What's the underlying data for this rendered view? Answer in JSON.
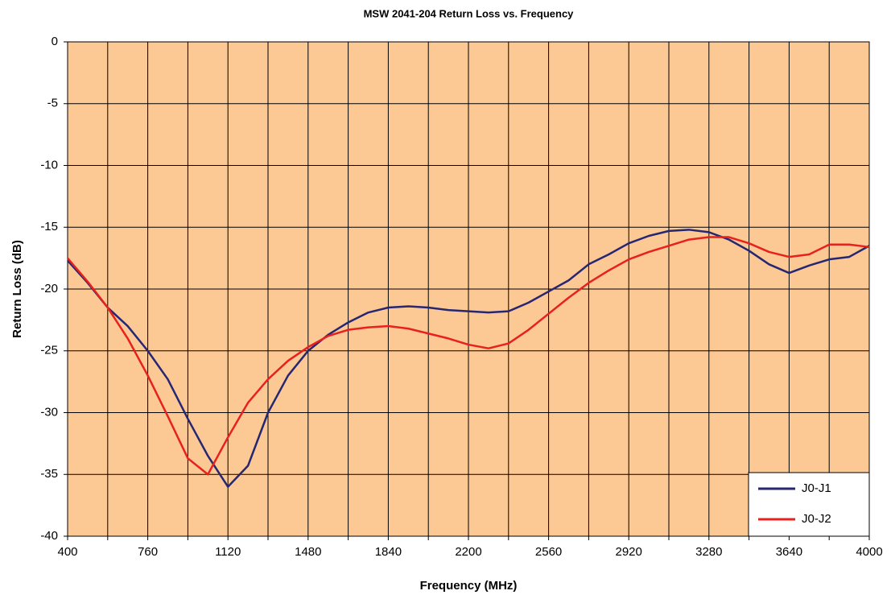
{
  "chart_data": {
    "type": "line",
    "title": "MSW 2041-204 Return Loss vs. Frequency",
    "xlabel": "Frequency (MHz)",
    "ylabel": "Return Loss (dB)",
    "x": [
      400,
      490,
      580,
      670,
      760,
      850,
      940,
      1030,
      1120,
      1210,
      1300,
      1390,
      1480,
      1570,
      1660,
      1750,
      1840,
      1930,
      2020,
      2110,
      2200,
      2290,
      2380,
      2470,
      2560,
      2650,
      2740,
      2830,
      2920,
      3010,
      3100,
      3190,
      3280,
      3370,
      3460,
      3550,
      3640,
      3730,
      3820,
      3910,
      4000
    ],
    "series": [
      {
        "name": "J0-J1",
        "color": "#262673",
        "values": [
          -17.7,
          -19.5,
          -21.5,
          -23.0,
          -25.0,
          -27.3,
          -30.5,
          -33.5,
          -36.0,
          -34.3,
          -30.0,
          -27.0,
          -25.0,
          -23.7,
          -22.7,
          -21.9,
          -21.5,
          -21.4,
          -21.5,
          -21.7,
          -21.8,
          -21.9,
          -21.8,
          -21.1,
          -20.2,
          -19.3,
          -18.0,
          -17.2,
          -16.3,
          -15.7,
          -15.3,
          -15.2,
          -15.4,
          -16.0,
          -16.9,
          -18.0,
          -18.7,
          -18.1,
          -17.6,
          -17.4,
          -16.5
        ]
      },
      {
        "name": "J0-J2",
        "color": "#e8201e",
        "values": [
          -17.5,
          -19.4,
          -21.5,
          -24.0,
          -27.0,
          -30.3,
          -33.7,
          -35.0,
          -32.0,
          -29.2,
          -27.3,
          -25.8,
          -24.7,
          -23.8,
          -23.3,
          -23.1,
          -23.0,
          -23.2,
          -23.6,
          -24.0,
          -24.5,
          -24.8,
          -24.4,
          -23.3,
          -22.0,
          -20.7,
          -19.5,
          -18.5,
          -17.6,
          -17.0,
          -16.5,
          -16.0,
          -15.8,
          -15.8,
          -16.3,
          -17.0,
          -17.4,
          -17.2,
          -16.4,
          -16.4,
          -16.6
        ]
      }
    ],
    "xlim": [
      400,
      4000
    ],
    "xticks": [
      400,
      760,
      1120,
      1480,
      1840,
      2200,
      2560,
      2920,
      3280,
      3640,
      4000
    ],
    "xminor_ticks": [
      580,
      940,
      1300,
      1660,
      2020,
      2380,
      2740,
      3100,
      3460,
      3820
    ],
    "ylim": [
      -40,
      0
    ],
    "yticks": [
      -40,
      -35,
      -30,
      -25,
      -20,
      -15,
      -10,
      -5,
      0
    ],
    "grid": true,
    "legend": "lower right",
    "background": "#fcc995"
  }
}
